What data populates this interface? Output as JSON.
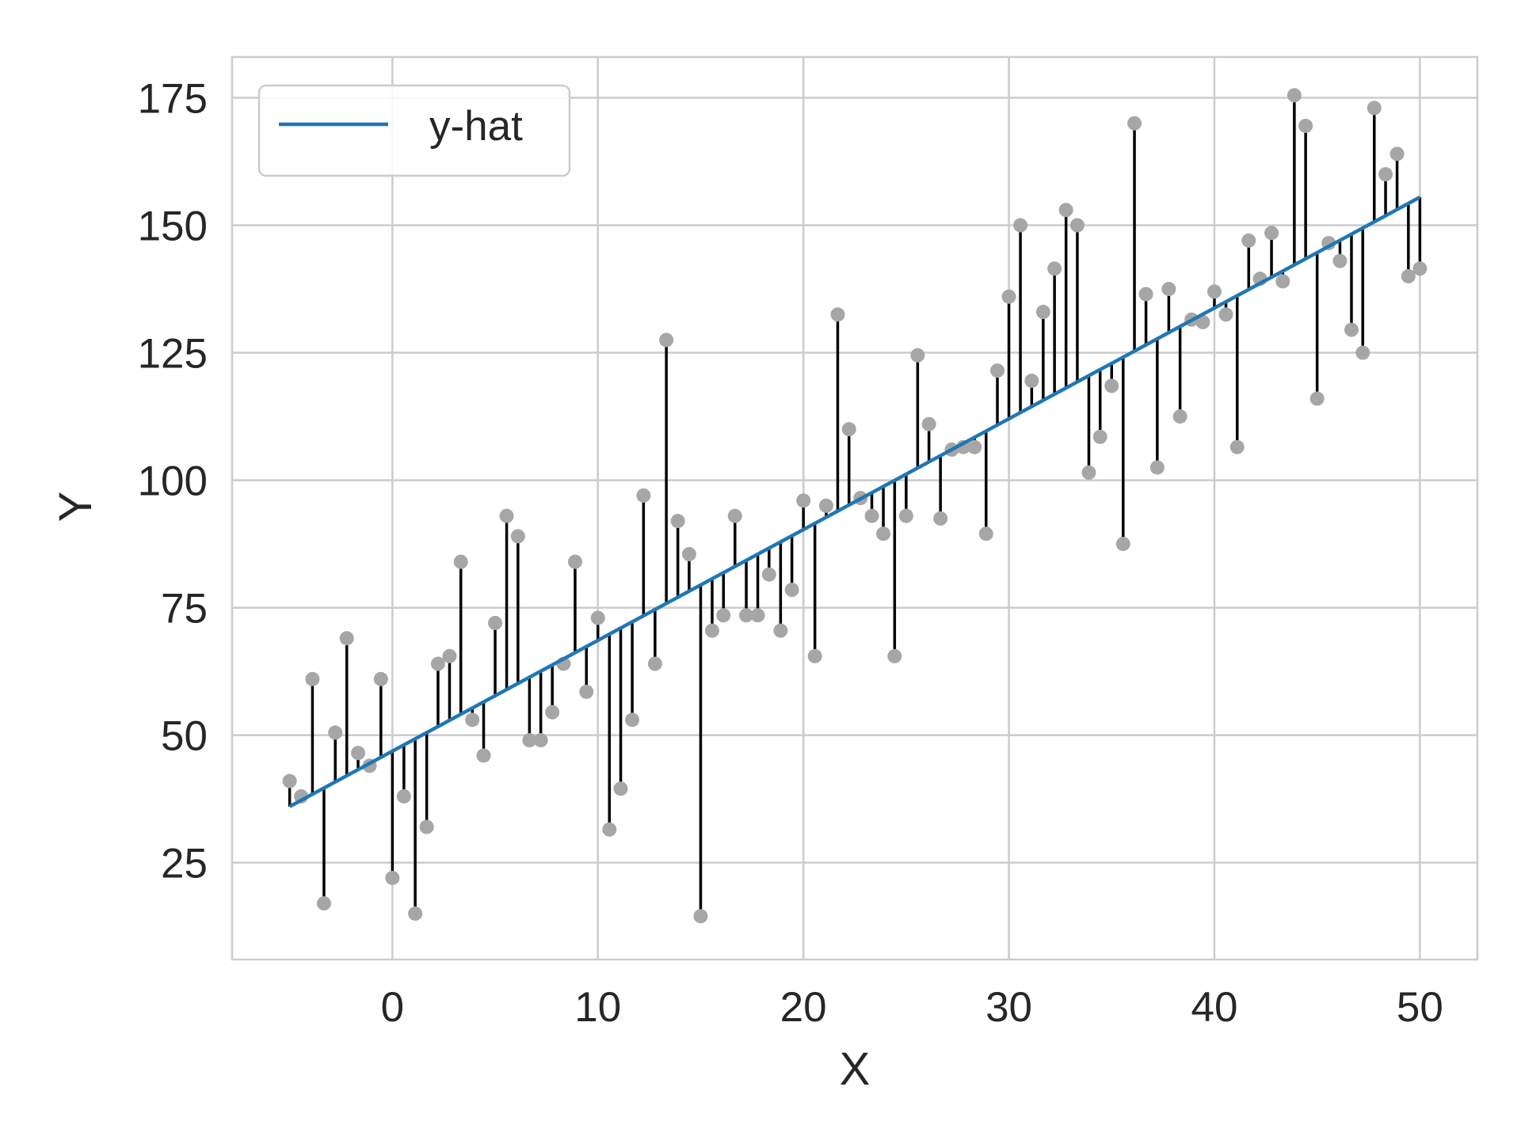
{
  "chart_data": {
    "type": "scatter",
    "xlabel": "X",
    "ylabel": "Y",
    "xlim": [
      -7.8,
      52.8
    ],
    "ylim": [
      6,
      183
    ],
    "x_ticks": [
      0,
      10,
      20,
      30,
      40,
      50
    ],
    "y_ticks": [
      25,
      50,
      75,
      100,
      125,
      150,
      175
    ],
    "x_tick_labels": [
      "0",
      "10",
      "20",
      "30",
      "40",
      "50"
    ],
    "y_tick_labels": [
      "25",
      "50",
      "75",
      "100",
      "125",
      "150",
      "175"
    ],
    "grid": true,
    "legend": {
      "position": "top-left",
      "entries": [
        "y-hat"
      ]
    },
    "colors": {
      "fit_line": "#1f77b4",
      "residual_line": "#000000",
      "points": "#a6a6a6",
      "grid": "#cccccc"
    },
    "fit_line": {
      "name": "y-hat",
      "x": [
        -5,
        50
      ],
      "y": [
        36,
        155.5
      ]
    },
    "points": {
      "x": [
        -5,
        -4.44,
        -3.89,
        -3.33,
        -2.78,
        -2.22,
        -1.67,
        -1.11,
        -0.56,
        0,
        0.56,
        1.11,
        1.67,
        2.22,
        2.78,
        3.33,
        3.89,
        4.44,
        5,
        5.56,
        6.11,
        6.67,
        7.22,
        7.78,
        8.33,
        8.89,
        9.44,
        10,
        10.56,
        11.11,
        11.67,
        12.22,
        12.78,
        13.33,
        13.89,
        14.44,
        15,
        15.56,
        16.11,
        16.67,
        17.22,
        17.78,
        18.33,
        18.89,
        19.44,
        20,
        20.56,
        21.11,
        21.67,
        22.22,
        22.78,
        23.33,
        23.89,
        24.44,
        25,
        25.56,
        26.11,
        26.67,
        27.22,
        27.78,
        28.33,
        28.89,
        29.44,
        30,
        30.56,
        31.11,
        31.67,
        32.22,
        32.78,
        33.33,
        33.89,
        34.44,
        35,
        35.56,
        36.11,
        36.67,
        37.22,
        37.78,
        38.33,
        38.89,
        39.44,
        40,
        40.56,
        41.11,
        41.67,
        42.22,
        42.78,
        43.33,
        43.89,
        44.44,
        45,
        45.56,
        46.11,
        46.67,
        47.22,
        47.78,
        48.33,
        48.89,
        49.44,
        50
      ],
      "y": [
        41,
        38,
        61,
        17,
        50.5,
        69,
        46.5,
        44,
        61,
        22,
        38,
        15,
        32,
        64,
        65.5,
        84,
        53,
        46,
        72,
        93,
        89,
        49,
        49,
        54.5,
        64,
        84,
        58.5,
        73,
        31.5,
        39.5,
        53,
        97,
        64,
        127.5,
        92,
        85.5,
        14.5,
        70.5,
        73.5,
        93,
        73.5,
        73.5,
        81.5,
        70.5,
        78.5,
        96,
        65.5,
        95,
        132.5,
        110,
        96.5,
        93,
        89.5,
        65.5,
        93,
        124.5,
        111,
        92.5,
        106,
        106.5,
        106.5,
        89.5,
        121.5,
        136,
        150,
        119.5,
        133,
        141.5,
        153,
        150,
        101.5,
        108.5,
        118.5,
        87.5,
        170,
        136.5,
        102.5,
        137.5,
        112.5,
        131.5,
        131,
        137,
        132.5,
        106.5,
        147,
        139.5,
        148.5,
        139,
        175.5,
        169.5,
        116,
        146.5,
        143,
        129.5,
        125,
        173,
        160,
        164,
        140,
        141.5
      ]
    }
  }
}
